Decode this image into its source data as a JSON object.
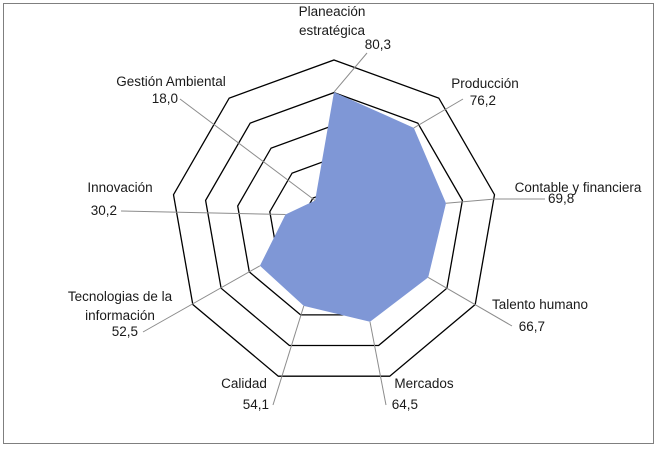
{
  "chart_data": {
    "type": "radar",
    "categories": [
      "Planeación estratégica",
      "Producción",
      "Contable y financiera",
      "Talento humano",
      "Mercados",
      "Calidad",
      "Tecnologias de la información",
      "Innovación",
      "Gestión Ambiental"
    ],
    "category_lines": [
      [
        "Planeación",
        "estratégica"
      ],
      [
        "Producción"
      ],
      [
        "Contable y financiera"
      ],
      [
        "Talento humano"
      ],
      [
        "Mercados"
      ],
      [
        "Calidad"
      ],
      [
        "Tecnologias de la",
        "información"
      ],
      [
        "Innovación"
      ],
      [
        "Gestión Ambiental"
      ]
    ],
    "values": [
      80.3,
      76.2,
      69.8,
      66.7,
      64.5,
      54.1,
      52.5,
      30.2,
      18.0
    ],
    "value_labels": [
      "80,3",
      "76,2",
      "69,8",
      "66,7",
      "64,5",
      "54,1",
      "52,5",
      "30,2",
      "18,0"
    ],
    "rmax": 100,
    "gridlines": [
      20,
      40,
      60,
      80,
      100
    ],
    "fill_color": "#7f97d6",
    "grid_color": "#000000",
    "leader_color": "#8c8c8c",
    "legend": false
  }
}
